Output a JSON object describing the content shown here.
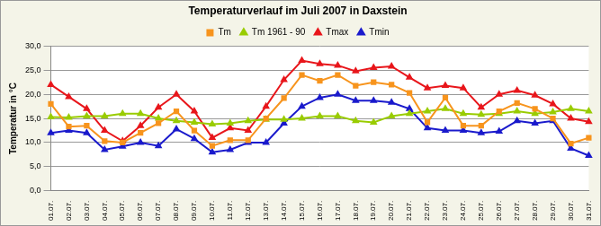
{
  "chart_data": {
    "type": "line",
    "title": "Temperaturverlauf im Juli 2007 in Daxstein",
    "y_label": "Temperatur in °C",
    "categories": [
      "01.07.",
      "02.07.",
      "03.07.",
      "04.07.",
      "05.07.",
      "06.07.",
      "07.07.",
      "08.07.",
      "09.07.",
      "10.07.",
      "11.07.",
      "12.07.",
      "13.07.",
      "14.07.",
      "15.07.",
      "16.07.",
      "17.07.",
      "18.07.",
      "19.07.",
      "20.07.",
      "21.07.",
      "22.07.",
      "23.07.",
      "24.07.",
      "25.07.",
      "26.07.",
      "27.07.",
      "28.07.",
      "29.07.",
      "30.07.",
      "31.07."
    ],
    "series": [
      {
        "name": "Tm",
        "color": "#f7941d",
        "marker": "square",
        "line_style": "solid",
        "values": [
          18,
          13.3,
          13.5,
          10.3,
          10,
          12,
          14,
          16.5,
          12.5,
          9.3,
          10.5,
          10.5,
          15,
          19.2,
          24,
          22.8,
          24,
          21.8,
          22.5,
          22,
          20.3,
          14.2,
          19.3,
          13.5,
          13.5,
          16.5,
          18.2,
          17,
          15,
          9.8,
          11
        ]
      },
      {
        "name": "Tm 1961 - 90",
        "color": "#99cc00",
        "marker": "triangle",
        "line_style": "solid",
        "values": [
          15.3,
          15.2,
          15.5,
          15.5,
          16,
          16,
          15,
          14.5,
          14.2,
          13.8,
          14,
          14.5,
          14.8,
          14.8,
          15,
          15.5,
          15.5,
          14.5,
          14.2,
          15.5,
          16,
          16.5,
          17,
          16,
          15.8,
          16,
          16.5,
          16,
          16.3,
          17,
          16.5
        ]
      },
      {
        "name": "Tmax",
        "color": "#e8161b",
        "marker": "triangle",
        "line_style": "solid",
        "values": [
          22,
          19.5,
          17,
          12.5,
          10.3,
          13.5,
          17.3,
          20,
          16.5,
          11,
          13,
          12.5,
          17.5,
          23,
          27,
          26.3,
          26,
          24.8,
          25.5,
          25.8,
          23.5,
          21.3,
          21.8,
          21.3,
          17.3,
          20,
          20.8,
          19.8,
          18,
          15,
          14.3
        ]
      },
      {
        "name": "Tmin",
        "color": "#1a1acc",
        "marker": "triangle",
        "line_style": "solid",
        "values": [
          12,
          12.5,
          12,
          8.5,
          9.2,
          10,
          9.3,
          12.8,
          10.8,
          8,
          8.5,
          10,
          10,
          14,
          17.5,
          19.3,
          20,
          18.7,
          18.7,
          18.3,
          17,
          13,
          12.5,
          12.5,
          12,
          12.3,
          14.5,
          14,
          14.5,
          8.8,
          7.3
        ]
      }
    ],
    "ylim": [
      0,
      30
    ],
    "yticks": [
      {
        "value": 0,
        "label": "0,0"
      },
      {
        "value": 5,
        "label": "5,0"
      },
      {
        "value": 10,
        "label": "10,0"
      },
      {
        "value": 15,
        "label": "15,0"
      },
      {
        "value": 20,
        "label": "20,0"
      },
      {
        "value": 25,
        "label": "25,0"
      },
      {
        "value": 30,
        "label": "30,0"
      }
    ],
    "grid": true,
    "legend": "top"
  }
}
